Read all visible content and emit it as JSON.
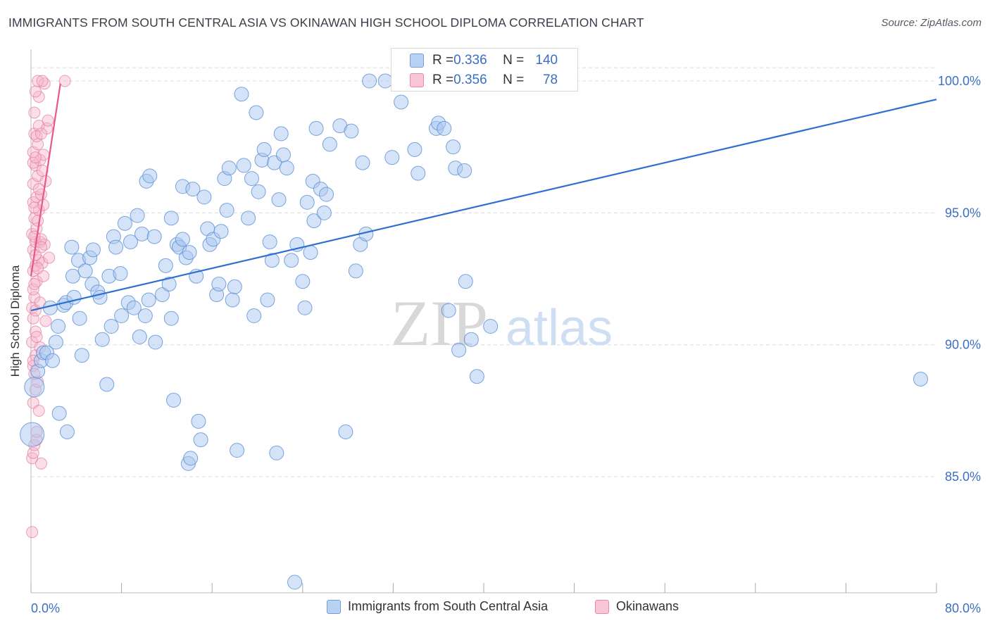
{
  "title": "IMMIGRANTS FROM SOUTH CENTRAL ASIA VS OKINAWAN HIGH SCHOOL DIPLOMA CORRELATION CHART",
  "source": "Source: ZipAtlas.com",
  "watermark": {
    "zip": "ZIP",
    "atlas": "atlas"
  },
  "colors": {
    "blue_fill": "#a9c8ef",
    "blue_stroke": "#5b8fd6",
    "blue_line": "#2f6fcf",
    "pink_fill": "#f6b6cb",
    "pink_stroke": "#e27aa0",
    "pink_line": "#e8578b",
    "tick_label": "#3a6fc4",
    "grid": "#dcdcdc"
  },
  "legend_top": {
    "rows": [
      {
        "r_label": "R = ",
        "r_value": "0.336",
        "n_label": "N = ",
        "n_value": "140"
      },
      {
        "r_label": "R = ",
        "r_value": "0.356",
        "n_label": "N = ",
        "n_value": "78"
      }
    ]
  },
  "chart_data": {
    "type": "scatter",
    "title": "IMMIGRANTS FROM SOUTH CENTRAL ASIA VS OKINAWAN HIGH SCHOOL DIPLOMA CORRELATION CHART",
    "xlabel": "",
    "ylabel": "High School Diploma",
    "xlim": [
      0,
      80
    ],
    "ylim": [
      80.6,
      101.2
    ],
    "x_tick_labels": [
      "0.0%",
      "80.0%"
    ],
    "y_ticks": [
      85,
      90,
      95,
      100
    ],
    "y_tick_labels": [
      "85.0%",
      "90.0%",
      "95.0%",
      "100.0%"
    ],
    "grid": true,
    "legend_placement": "bottom",
    "series": [
      {
        "name": "Immigrants from South Central Asia",
        "color": "#a9c8ef",
        "stats": {
          "R": 0.336,
          "N": 140
        },
        "trend": {
          "x0": 0,
          "y0": 91.3,
          "x1": 80,
          "y1": 99.3
        },
        "points": [
          [
            0.1,
            86.6
          ],
          [
            0.3,
            88.4
          ],
          [
            0.6,
            89.0
          ],
          [
            0.9,
            89.4
          ],
          [
            1.1,
            89.7
          ],
          [
            1.4,
            89.7
          ],
          [
            1.9,
            89.4
          ],
          [
            2.2,
            90.1
          ],
          [
            2.4,
            90.7
          ],
          [
            2.5,
            87.4
          ],
          [
            3.2,
            86.7
          ],
          [
            1.7,
            91.4
          ],
          [
            2.9,
            91.5
          ],
          [
            3.1,
            91.6
          ],
          [
            3.8,
            91.8
          ],
          [
            3.6,
            93.7
          ],
          [
            3.7,
            92.6
          ],
          [
            4.2,
            93.2
          ],
          [
            4.3,
            91.0
          ],
          [
            4.5,
            89.6
          ],
          [
            4.8,
            92.8
          ],
          [
            5.2,
            93.3
          ],
          [
            5.4,
            92.3
          ],
          [
            5.5,
            93.6
          ],
          [
            5.9,
            92.0
          ],
          [
            6.1,
            91.8
          ],
          [
            6.3,
            90.2
          ],
          [
            6.7,
            88.5
          ],
          [
            6.9,
            92.6
          ],
          [
            7.1,
            90.7
          ],
          [
            7.3,
            94.1
          ],
          [
            7.5,
            93.7
          ],
          [
            7.9,
            92.7
          ],
          [
            8.0,
            91.1
          ],
          [
            8.3,
            94.6
          ],
          [
            8.6,
            91.6
          ],
          [
            8.8,
            93.9
          ],
          [
            9.1,
            91.4
          ],
          [
            9.4,
            94.9
          ],
          [
            9.6,
            90.3
          ],
          [
            9.8,
            94.2
          ],
          [
            10.1,
            91.1
          ],
          [
            10.2,
            96.2
          ],
          [
            10.5,
            96.4
          ],
          [
            10.4,
            91.7
          ],
          [
            10.9,
            94.1
          ],
          [
            11.0,
            90.1
          ],
          [
            11.6,
            91.9
          ],
          [
            11.9,
            93.0
          ],
          [
            12.2,
            92.3
          ],
          [
            12.4,
            91.0
          ],
          [
            12.4,
            94.8
          ],
          [
            12.6,
            87.9
          ],
          [
            12.9,
            93.8
          ],
          [
            13.1,
            93.7
          ],
          [
            13.4,
            94.0
          ],
          [
            13.4,
            96.0
          ],
          [
            13.7,
            93.3
          ],
          [
            14.0,
            93.5
          ],
          [
            14.3,
            95.9
          ],
          [
            14.6,
            92.6
          ],
          [
            14.8,
            87.1
          ],
          [
            15.0,
            86.4
          ],
          [
            15.3,
            95.6
          ],
          [
            15.6,
            94.4
          ],
          [
            15.8,
            93.8
          ],
          [
            13.9,
            85.5
          ],
          [
            14.1,
            85.7
          ],
          [
            16.1,
            94.0
          ],
          [
            16.4,
            91.9
          ],
          [
            16.6,
            92.3
          ],
          [
            16.8,
            94.3
          ],
          [
            17.1,
            96.3
          ],
          [
            17.3,
            95.1
          ],
          [
            17.5,
            96.7
          ],
          [
            17.8,
            91.7
          ],
          [
            18.0,
            92.2
          ],
          [
            18.2,
            86.0
          ],
          [
            18.6,
            99.5
          ],
          [
            18.8,
            96.8
          ],
          [
            19.2,
            94.8
          ],
          [
            19.5,
            96.3
          ],
          [
            19.7,
            91.1
          ],
          [
            19.9,
            98.8
          ],
          [
            20.1,
            95.8
          ],
          [
            20.4,
            97.0
          ],
          [
            20.6,
            97.4
          ],
          [
            20.9,
            91.7
          ],
          [
            21.1,
            93.9
          ],
          [
            21.3,
            93.2
          ],
          [
            21.5,
            96.9
          ],
          [
            21.7,
            85.9
          ],
          [
            21.9,
            95.5
          ],
          [
            22.1,
            98.0
          ],
          [
            22.3,
            97.2
          ],
          [
            22.6,
            96.7
          ],
          [
            23.0,
            93.2
          ],
          [
            23.3,
            81.0
          ],
          [
            23.5,
            93.8
          ],
          [
            24.0,
            92.4
          ],
          [
            24.2,
            91.4
          ],
          [
            24.4,
            95.4
          ],
          [
            24.7,
            93.5
          ],
          [
            24.9,
            96.2
          ],
          [
            25.0,
            94.7
          ],
          [
            25.2,
            98.2
          ],
          [
            25.6,
            95.9
          ],
          [
            25.9,
            95.0
          ],
          [
            26.1,
            95.7
          ],
          [
            26.4,
            97.6
          ],
          [
            27.3,
            98.3
          ],
          [
            28.3,
            98.1
          ],
          [
            27.8,
            86.7
          ],
          [
            28.7,
            92.8
          ],
          [
            29.1,
            93.8
          ],
          [
            29.3,
            96.9
          ],
          [
            29.6,
            94.2
          ],
          [
            29.9,
            100.0
          ],
          [
            31.3,
            100.0
          ],
          [
            31.9,
            97.1
          ],
          [
            32.7,
            99.2
          ],
          [
            33.9,
            97.4
          ],
          [
            34.2,
            96.5
          ],
          [
            35.8,
            98.2
          ],
          [
            36.0,
            98.4
          ],
          [
            36.5,
            98.2
          ],
          [
            37.3,
            97.5
          ],
          [
            37.5,
            96.7
          ],
          [
            37.8,
            89.8
          ],
          [
            38.3,
            96.6
          ],
          [
            38.4,
            92.4
          ],
          [
            36.9,
            91.3
          ],
          [
            38.9,
            90.2
          ],
          [
            39.4,
            88.8
          ],
          [
            40.6,
            90.7
          ],
          [
            78.6,
            88.7
          ]
        ]
      },
      {
        "name": "Okinawans",
        "color": "#f6b6cb",
        "stats": {
          "R": 0.356,
          "N": 78
        },
        "trend": {
          "x0": 0,
          "y0": 92.6,
          "x1": 2.6,
          "y1": 99.9
        },
        "points": [
          [
            0.1,
            82.9
          ],
          [
            0.1,
            85.7
          ],
          [
            0.2,
            85.9
          ],
          [
            0.3,
            86.2
          ],
          [
            0.5,
            86.4
          ],
          [
            0.9,
            85.5
          ],
          [
            0.2,
            87.8
          ],
          [
            0.4,
            88.3
          ],
          [
            0.6,
            88.6
          ],
          [
            0.2,
            89.2
          ],
          [
            0.4,
            89.6
          ],
          [
            0.1,
            90.1
          ],
          [
            0.4,
            90.5
          ],
          [
            0.2,
            91.0
          ],
          [
            1.3,
            90.9
          ],
          [
            0.1,
            91.4
          ],
          [
            0.3,
            91.8
          ],
          [
            0.2,
            92.1
          ],
          [
            0.5,
            92.4
          ],
          [
            1.1,
            92.6
          ],
          [
            0.2,
            92.8
          ],
          [
            0.4,
            93.0
          ],
          [
            0.7,
            93.2
          ],
          [
            1.0,
            93.1
          ],
          [
            1.6,
            93.3
          ],
          [
            0.2,
            93.6
          ],
          [
            0.4,
            93.9
          ],
          [
            0.8,
            93.9
          ],
          [
            1.2,
            93.8
          ],
          [
            0.1,
            94.2
          ],
          [
            0.5,
            94.4
          ],
          [
            0.3,
            94.8
          ],
          [
            0.7,
            95.1
          ],
          [
            0.2,
            95.4
          ],
          [
            0.5,
            95.6
          ],
          [
            0.9,
            95.7
          ],
          [
            0.2,
            96.1
          ],
          [
            0.6,
            96.4
          ],
          [
            0.4,
            96.8
          ],
          [
            0.8,
            97.0
          ],
          [
            0.2,
            97.3
          ],
          [
            0.6,
            97.6
          ],
          [
            1.1,
            97.2
          ],
          [
            0.3,
            98.0
          ],
          [
            0.7,
            98.3
          ],
          [
            1.4,
            98.2
          ],
          [
            1.5,
            98.5
          ],
          [
            0.3,
            98.8
          ],
          [
            0.7,
            99.4
          ],
          [
            0.4,
            99.6
          ],
          [
            1.2,
            99.9
          ],
          [
            0.6,
            100.0
          ],
          [
            1.0,
            100.0
          ],
          [
            3.0,
            100.0
          ],
          [
            0.5,
            97.9
          ],
          [
            0.3,
            95.2
          ],
          [
            0.9,
            94.0
          ],
          [
            0.6,
            92.9
          ],
          [
            0.4,
            91.3
          ],
          [
            0.8,
            89.9
          ],
          [
            0.3,
            88.9
          ],
          [
            0.7,
            87.5
          ],
          [
            0.5,
            86.7
          ],
          [
            1.3,
            96.2
          ],
          [
            0.2,
            96.9
          ],
          [
            0.9,
            98.0
          ],
          [
            0.4,
            93.4
          ],
          [
            0.6,
            94.7
          ],
          [
            1.1,
            95.3
          ],
          [
            0.3,
            92.3
          ],
          [
            0.8,
            91.6
          ],
          [
            0.5,
            90.3
          ],
          [
            0.2,
            89.4
          ],
          [
            0.9,
            93.7
          ],
          [
            0.4,
            97.1
          ],
          [
            0.7,
            95.9
          ],
          [
            1.0,
            96.6
          ],
          [
            0.3,
            94.1
          ]
        ]
      }
    ]
  },
  "legend_bottom": [
    {
      "label": "Immigrants from South Central Asia"
    },
    {
      "label": "Okinawans"
    }
  ]
}
